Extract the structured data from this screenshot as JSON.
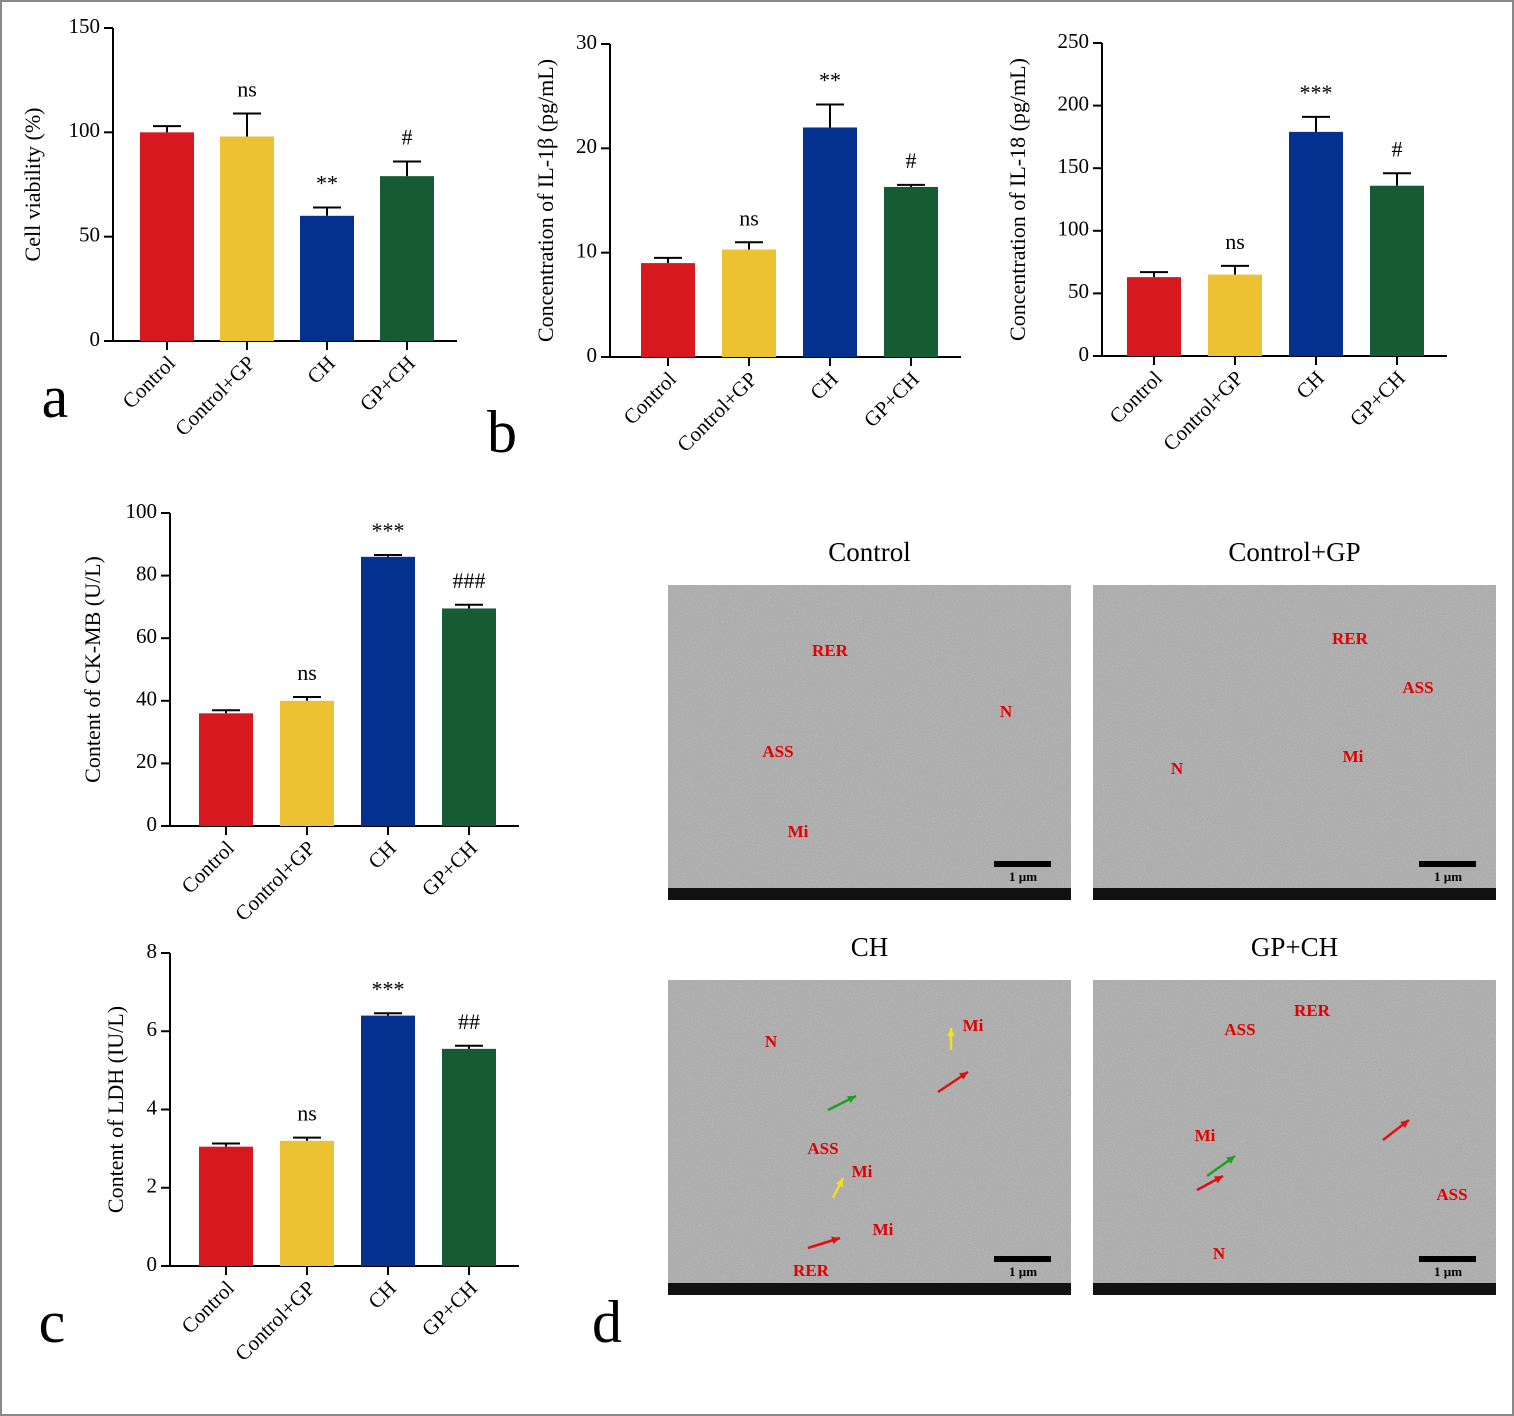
{
  "chart_data": [
    {
      "type": "bar",
      "ylabel": "Cell viability (%)",
      "categories": [
        "Control",
        "Control+GP",
        "CH",
        "GP+CH"
      ],
      "values": [
        100,
        98,
        60,
        79
      ],
      "errors": [
        3,
        11,
        4,
        7
      ],
      "annotations": [
        null,
        "ns",
        "**",
        "#"
      ],
      "colors": [
        "#d7191f",
        "#ecc232",
        "#04318f",
        "#155b34"
      ],
      "ylim": [
        0,
        150
      ],
      "yticks": [
        0,
        50,
        100,
        150
      ]
    },
    {
      "type": "bar",
      "ylabel": "Concentration of IL-1β (pg/mL)",
      "categories": [
        "Control",
        "Control+GP",
        "CH",
        "GP+CH"
      ],
      "values": [
        9,
        10.3,
        22,
        16.3
      ],
      "errors": [
        0.5,
        0.7,
        2.2,
        0.2
      ],
      "annotations": [
        null,
        "ns",
        "**",
        "#"
      ],
      "colors": [
        "#d7191f",
        "#ecc232",
        "#04318f",
        "#155b34"
      ],
      "ylim": [
        0,
        30
      ],
      "yticks": [
        0,
        10,
        20,
        30
      ]
    },
    {
      "type": "bar",
      "ylabel": "Concentration of IL-18 (pg/mL)",
      "categories": [
        "Control",
        "Control+GP",
        "CH",
        "GP+CH"
      ],
      "values": [
        63,
        65,
        179,
        136
      ],
      "errors": [
        4,
        7,
        12,
        10
      ],
      "annotations": [
        null,
        "ns",
        "***",
        "#"
      ],
      "colors": [
        "#d7191f",
        "#ecc232",
        "#04318f",
        "#155b34"
      ],
      "ylim": [
        0,
        250
      ],
      "yticks": [
        0,
        50,
        100,
        150,
        200,
        250
      ]
    },
    {
      "type": "bar",
      "ylabel": "Content of CK-MB (U/L)",
      "categories": [
        "Control",
        "Control+GP",
        "CH",
        "GP+CH"
      ],
      "values": [
        36,
        40,
        86,
        69.5
      ],
      "errors": [
        1,
        1.2,
        0.6,
        1.2
      ],
      "annotations": [
        null,
        "ns",
        "***",
        "###"
      ],
      "colors": [
        "#d7191f",
        "#ecc232",
        "#04318f",
        "#155b34"
      ],
      "ylim": [
        0,
        100
      ],
      "yticks": [
        0,
        20,
        40,
        60,
        80,
        100
      ]
    },
    {
      "type": "bar",
      "ylabel": "Content of LDH (IU/L)",
      "categories": [
        "Control",
        "Control+GP",
        "CH",
        "GP+CH"
      ],
      "values": [
        3.05,
        3.2,
        6.4,
        5.55
      ],
      "errors": [
        0.08,
        0.08,
        0.06,
        0.08
      ],
      "annotations": [
        null,
        "ns",
        "***",
        "##"
      ],
      "colors": [
        "#d7191f",
        "#ecc232",
        "#04318f",
        "#155b34"
      ],
      "ylim": [
        0,
        8
      ],
      "yticks": [
        0,
        2,
        4,
        6,
        8
      ]
    }
  ],
  "panel_letters": [
    "a",
    "b",
    "c",
    "d"
  ],
  "micrographs": [
    {
      "title": "Control",
      "labels": [
        "RER",
        "N",
        "ASS",
        "Mi"
      ],
      "scale_bar": "1 µm"
    },
    {
      "title": "Control+GP",
      "labels": [
        "RER",
        "ASS",
        "N",
        "Mi"
      ],
      "scale_bar": "1 µm"
    },
    {
      "title": "CH",
      "labels": [
        "N",
        "Mi",
        "ASS",
        "Mi",
        "Mi",
        "RER"
      ],
      "scale_bar": "1 µm"
    },
    {
      "title": "GP+CH",
      "labels": [
        "RER",
        "ASS",
        "Mi",
        "ASS",
        "N"
      ],
      "scale_bar": "1 µm"
    }
  ]
}
